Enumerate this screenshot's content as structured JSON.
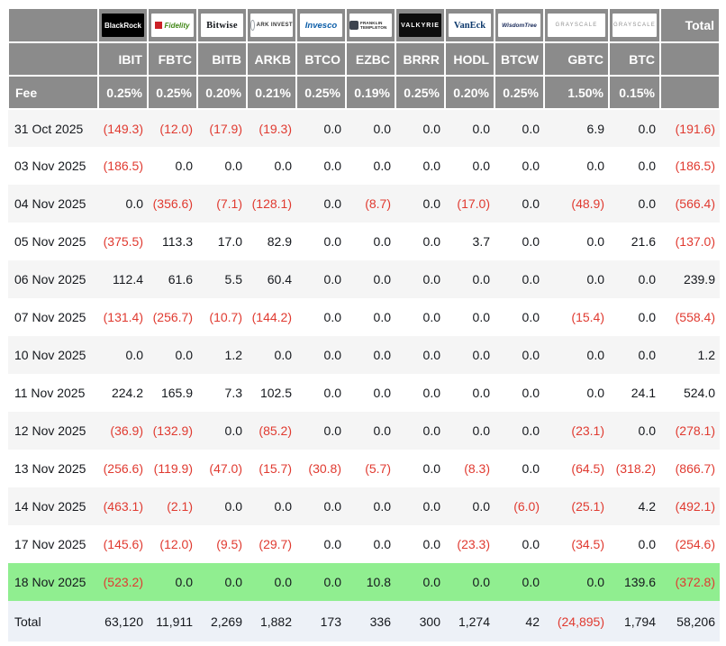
{
  "colors": {
    "header_bg": "#8b8b8b",
    "header_text": "#ffffff",
    "negative_red": "#e03a30",
    "highlight_green": "#90ee90",
    "total_row_bg": "#edf1f7",
    "alt_row_bg": "#f5f5f5"
  },
  "chart_data": {
    "type": "table",
    "corner_fee_label": "Fee",
    "total_column_label": "Total",
    "providers": [
      {
        "logo": "blackrock-logo",
        "brand": "BlackRock",
        "ticker": "IBIT",
        "fee": "0.25%"
      },
      {
        "logo": "fidelity-logo",
        "brand": "Fidelity",
        "ticker": "FBTC",
        "fee": "0.25%"
      },
      {
        "logo": "bitwise-logo",
        "brand": "Bitwise",
        "ticker": "BITB",
        "fee": "0.20%"
      },
      {
        "logo": "ark-invest-logo",
        "brand": "ARK INVEST",
        "ticker": "ARKB",
        "fee": "0.21%"
      },
      {
        "logo": "invesco-logo",
        "brand": "Invesco",
        "ticker": "BTCO",
        "fee": "0.25%"
      },
      {
        "logo": "franklin-templeton-logo",
        "brand": "FRANKLIN TEMPLETON",
        "ticker": "EZBC",
        "fee": "0.19%"
      },
      {
        "logo": "valkyrie-logo",
        "brand": "VALKYRIE",
        "ticker": "BRRR",
        "fee": "0.25%"
      },
      {
        "logo": "vaneck-logo",
        "brand": "VanEck",
        "ticker": "HODL",
        "fee": "0.20%"
      },
      {
        "logo": "wisdomtree-logo",
        "brand": "WisdomTree",
        "ticker": "BTCW",
        "fee": "0.25%"
      },
      {
        "logo": "grayscale-logo",
        "brand": "GRAYSCALE",
        "ticker": "GBTC",
        "fee": "1.50%"
      },
      {
        "logo": "grayscale-btc-logo",
        "brand": "GRAYSCALE",
        "ticker": "BTC",
        "fee": "0.15%"
      }
    ],
    "rows": [
      {
        "date": "31 Oct 2025",
        "values": [
          "(149.3)",
          "(12.0)",
          "(17.9)",
          "(19.3)",
          "0.0",
          "0.0",
          "0.0",
          "0.0",
          "0.0",
          "6.9",
          "0.0"
        ],
        "total": "(191.6)",
        "highlight": false
      },
      {
        "date": "03 Nov 2025",
        "values": [
          "(186.5)",
          "0.0",
          "0.0",
          "0.0",
          "0.0",
          "0.0",
          "0.0",
          "0.0",
          "0.0",
          "0.0",
          "0.0"
        ],
        "total": "(186.5)",
        "highlight": false
      },
      {
        "date": "04 Nov 2025",
        "values": [
          "0.0",
          "(356.6)",
          "(7.1)",
          "(128.1)",
          "0.0",
          "(8.7)",
          "0.0",
          "(17.0)",
          "0.0",
          "(48.9)",
          "0.0"
        ],
        "total": "(566.4)",
        "highlight": false
      },
      {
        "date": "05 Nov 2025",
        "values": [
          "(375.5)",
          "113.3",
          "17.0",
          "82.9",
          "0.0",
          "0.0",
          "0.0",
          "3.7",
          "0.0",
          "0.0",
          "21.6"
        ],
        "total": "(137.0)",
        "highlight": false
      },
      {
        "date": "06 Nov 2025",
        "values": [
          "112.4",
          "61.6",
          "5.5",
          "60.4",
          "0.0",
          "0.0",
          "0.0",
          "0.0",
          "0.0",
          "0.0",
          "0.0"
        ],
        "total": "239.9",
        "highlight": false
      },
      {
        "date": "07 Nov 2025",
        "values": [
          "(131.4)",
          "(256.7)",
          "(10.7)",
          "(144.2)",
          "0.0",
          "0.0",
          "0.0",
          "0.0",
          "0.0",
          "(15.4)",
          "0.0"
        ],
        "total": "(558.4)",
        "highlight": false
      },
      {
        "date": "10 Nov 2025",
        "values": [
          "0.0",
          "0.0",
          "1.2",
          "0.0",
          "0.0",
          "0.0",
          "0.0",
          "0.0",
          "0.0",
          "0.0",
          "0.0"
        ],
        "total": "1.2",
        "highlight": false
      },
      {
        "date": "11 Nov 2025",
        "values": [
          "224.2",
          "165.9",
          "7.3",
          "102.5",
          "0.0",
          "0.0",
          "0.0",
          "0.0",
          "0.0",
          "0.0",
          "24.1"
        ],
        "total": "524.0",
        "highlight": false
      },
      {
        "date": "12 Nov 2025",
        "values": [
          "(36.9)",
          "(132.9)",
          "0.0",
          "(85.2)",
          "0.0",
          "0.0",
          "0.0",
          "0.0",
          "0.0",
          "(23.1)",
          "0.0"
        ],
        "total": "(278.1)",
        "highlight": false
      },
      {
        "date": "13 Nov 2025",
        "values": [
          "(256.6)",
          "(119.9)",
          "(47.0)",
          "(15.7)",
          "(30.8)",
          "(5.7)",
          "0.0",
          "(8.3)",
          "0.0",
          "(64.5)",
          "(318.2)"
        ],
        "total": "(866.7)",
        "highlight": false
      },
      {
        "date": "14 Nov 2025",
        "values": [
          "(463.1)",
          "(2.1)",
          "0.0",
          "0.0",
          "0.0",
          "0.0",
          "0.0",
          "0.0",
          "(6.0)",
          "(25.1)",
          "4.2"
        ],
        "total": "(492.1)",
        "highlight": false
      },
      {
        "date": "17 Nov 2025",
        "values": [
          "(145.6)",
          "(12.0)",
          "(9.5)",
          "(29.7)",
          "0.0",
          "0.0",
          "0.0",
          "(23.3)",
          "0.0",
          "(34.5)",
          "0.0"
        ],
        "total": "(254.6)",
        "highlight": false
      },
      {
        "date": "18 Nov 2025",
        "values": [
          "(523.2)",
          "0.0",
          "0.0",
          "0.0",
          "0.0",
          "10.8",
          "0.0",
          "0.0",
          "0.0",
          "0.0",
          "139.6"
        ],
        "total": "(372.8)",
        "highlight": true
      }
    ],
    "total_row": {
      "label": "Total",
      "values": [
        "63,120",
        "11,911",
        "2,269",
        "1,882",
        "173",
        "336",
        "300",
        "1,274",
        "42",
        "(24,895)",
        "1,794"
      ],
      "total": "58,206"
    }
  }
}
